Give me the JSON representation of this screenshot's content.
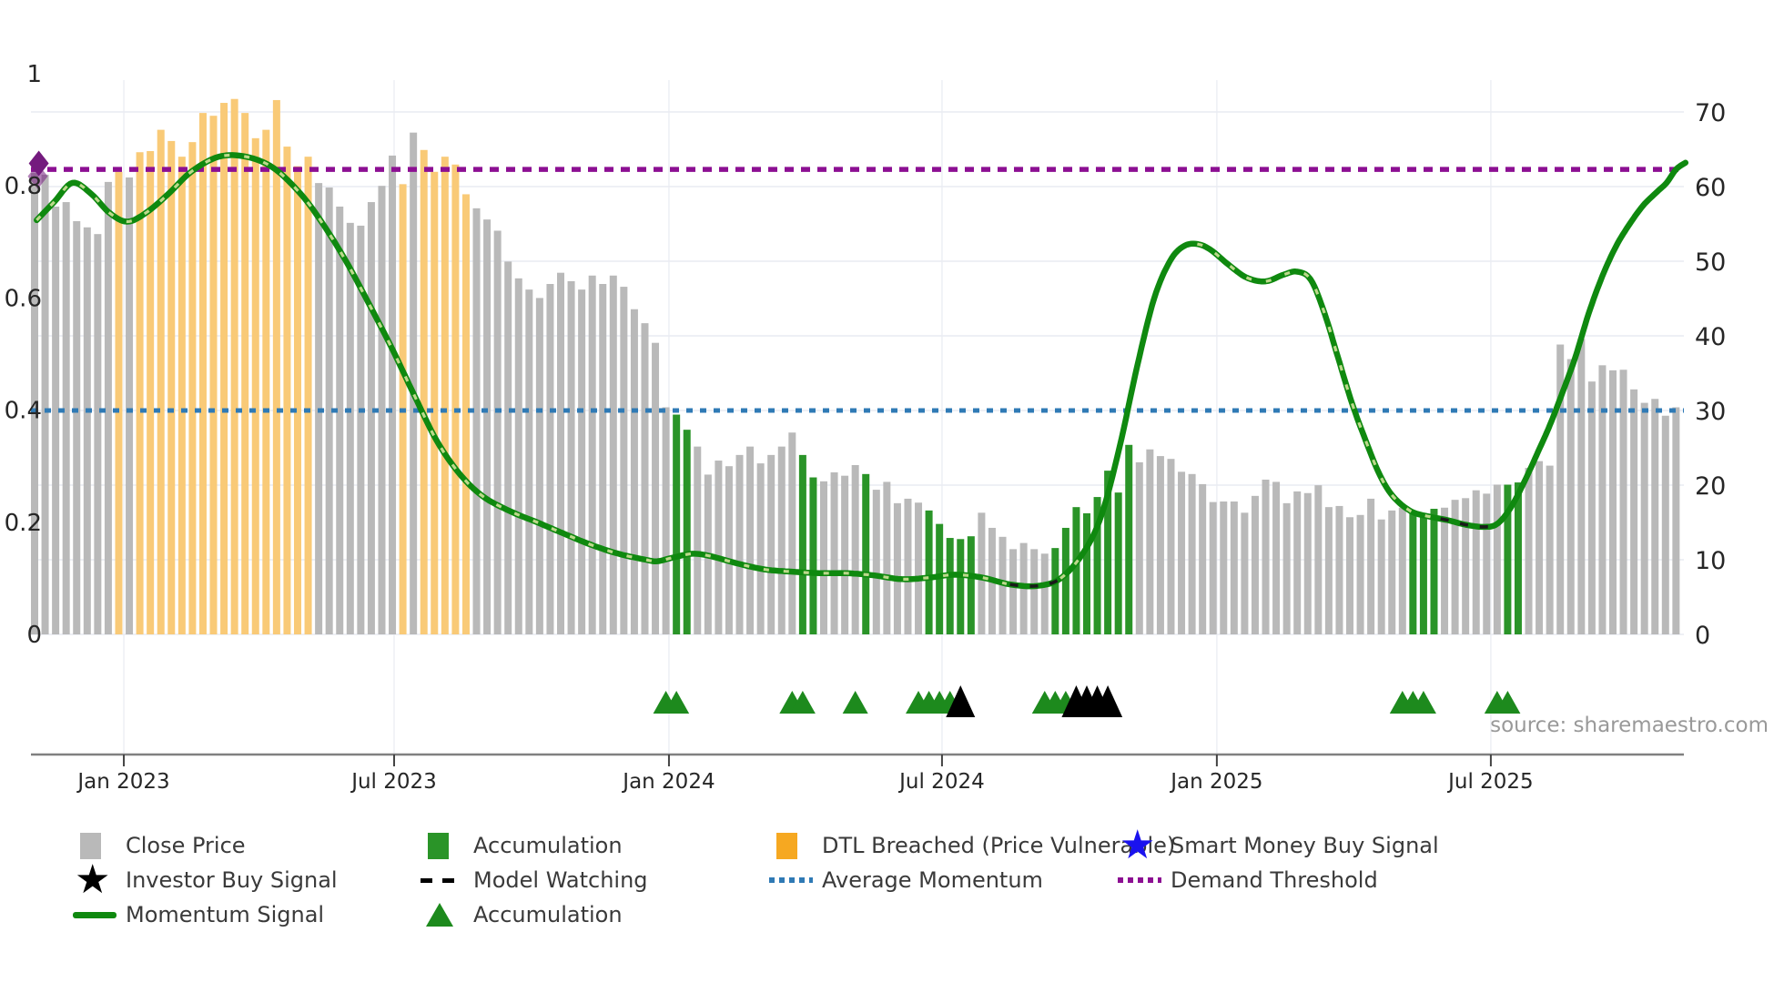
{
  "source": "source: sharemaestro.com",
  "colors": {
    "close_price_bar": "#b9b9b9",
    "dtl_breached_bar": "#f9ca77",
    "dtl_breached_legend": "#f6a821",
    "accumulation_bar": "#2a9428",
    "accumulation_triangle": "#1d8a1d",
    "investor_triangle": "#000000",
    "momentum_line": "#0f890f",
    "momentum_light_dash": "#bcd98b",
    "model_watch_dash": "#1a1a1a",
    "average_momentum": "#2f7ab5",
    "demand_threshold": "#8c0f92",
    "smart_money_star": "#1a12ee",
    "purple_diamond": "#741b7e",
    "grid": "#e9ebf2",
    "spine": "#808080",
    "tick_text": "#262626",
    "source_text": "#999999"
  },
  "axes": {
    "left": {
      "labels": [
        "1",
        "0.8",
        "0.6",
        "0.4",
        "0.2",
        "0"
      ],
      "values": [
        1,
        0.8,
        0.6,
        0.4,
        0.2,
        0
      ]
    },
    "right": {
      "labels": [
        "70",
        "60",
        "50",
        "40",
        "30",
        "20",
        "10",
        "0"
      ],
      "values": [
        70,
        60,
        50,
        40,
        30,
        20,
        10,
        0
      ]
    },
    "x": {
      "labels": [
        "Jan 2023",
        "Jul 2023",
        "Jan 2024",
        "Jul 2024",
        "Jan 2025",
        "Jul 2025"
      ],
      "bar_positions": [
        9.48,
        35.17,
        61.29,
        87.24,
        113.36,
        139.4
      ]
    }
  },
  "chart_data": {
    "type": "bar+line",
    "x_unit": "weekly bars, Nov 2022 - Oct 2025",
    "left_axis_range": [
      0,
      1
    ],
    "right_axis_range": [
      0,
      70
    ],
    "close_price_values": [
      0.823,
      0.82,
      0.763,
      0.771,
      0.737,
      0.726,
      0.714,
      0.807,
      0.825,
      0.815,
      0.86,
      0.862,
      0.9,
      0.88,
      0.852,
      0.878,
      0.93,
      0.925,
      0.948,
      0.955,
      0.93,
      0.885,
      0.9,
      0.953,
      0.87,
      0.835,
      0.852,
      0.805,
      0.797,
      0.763,
      0.734,
      0.729,
      0.771,
      0.8,
      0.854,
      0.803,
      0.895,
      0.864,
      0.825,
      0.852,
      0.838,
      0.785,
      0.76,
      0.74,
      0.72,
      0.665,
      0.635,
      0.615,
      0.6,
      0.625,
      0.645,
      0.63,
      0.615,
      0.64,
      0.625,
      0.64,
      0.62,
      0.58,
      0.555,
      0.52,
      0.405,
      0.392,
      0.365,
      0.335,
      0.285,
      0.31,
      0.3,
      0.32,
      0.335,
      0.305,
      0.32,
      0.335,
      0.36,
      0.32,
      0.28,
      0.273,
      0.289,
      0.283,
      0.302,
      0.286,
      0.258,
      0.272,
      0.234,
      0.242,
      0.235,
      0.221,
      0.197,
      0.172,
      0.17,
      0.175,
      0.217,
      0.19,
      0.174,
      0.152,
      0.163,
      0.152,
      0.144,
      0.154,
      0.19,
      0.227,
      0.216,
      0.245,
      0.292,
      0.253,
      0.338,
      0.307,
      0.33,
      0.318,
      0.313,
      0.29,
      0.286,
      0.268,
      0.236,
      0.237,
      0.237,
      0.217,
      0.247,
      0.276,
      0.272,
      0.234,
      0.255,
      0.252,
      0.266,
      0.227,
      0.229,
      0.209,
      0.213,
      0.242,
      0.205,
      0.221,
      0.226,
      0.219,
      0.209,
      0.224,
      0.226,
      0.24,
      0.243,
      0.257,
      0.251,
      0.267,
      0.267,
      0.271,
      0.297,
      0.309,
      0.301,
      0.517,
      0.491,
      0.527,
      0.451,
      0.48,
      0.471,
      0.472,
      0.437,
      0.413,
      0.42,
      0.39,
      0.405
    ],
    "bar_states": "ggggggggogoooooooooooooooooggggggggogooooogggggggggggggggggggaaggggggggggaaggggagggggaaaaagggggggaaaaaaaaggggggggggggggggggggggggggaaaggggggaagggggggggggggggg",
    "momentum_points": [
      [
        1.2,
        55.5
      ],
      [
        2.9,
        58
      ],
      [
        4.6,
        60.5
      ],
      [
        6.4,
        59
      ],
      [
        8.1,
        56.5
      ],
      [
        9.8,
        55.3
      ],
      [
        11.6,
        56.5
      ],
      [
        13.7,
        59
      ],
      [
        15.9,
        62
      ],
      [
        18.5,
        64
      ],
      [
        21.1,
        64
      ],
      [
        23.7,
        62.5
      ],
      [
        26.3,
        59
      ],
      [
        28.4,
        55
      ],
      [
        30.6,
        50
      ],
      [
        32.7,
        44.5
      ],
      [
        34.9,
        38.5
      ],
      [
        37.1,
        32
      ],
      [
        39.2,
        26
      ],
      [
        41.4,
        21.5
      ],
      [
        43.6,
        18.5
      ],
      [
        46.2,
        16.5
      ],
      [
        48.8,
        15
      ],
      [
        51.3,
        13.5
      ],
      [
        53.9,
        12
      ],
      [
        56.5,
        10.8
      ],
      [
        59.1,
        10
      ],
      [
        60.2,
        9.8
      ],
      [
        61.7,
        10.3
      ],
      [
        63.5,
        10.8
      ],
      [
        65.2,
        10.5
      ],
      [
        67.8,
        9.5
      ],
      [
        70.4,
        8.7
      ],
      [
        73,
        8.4
      ],
      [
        75.6,
        8.2
      ],
      [
        78.2,
        8.2
      ],
      [
        80.8,
        7.9
      ],
      [
        83.4,
        7.4
      ],
      [
        86,
        7.6
      ],
      [
        88.5,
        8
      ],
      [
        91.1,
        7.6
      ],
      [
        93.7,
        6.7
      ],
      [
        96.3,
        6.5
      ],
      [
        98.5,
        7.5
      ],
      [
        100.7,
        11
      ],
      [
        102.4,
        16
      ],
      [
        104.1,
        25
      ],
      [
        105.8,
        36
      ],
      [
        107.4,
        45
      ],
      [
        108.9,
        50
      ],
      [
        110.2,
        52
      ],
      [
        111.5,
        52.3
      ],
      [
        112.8,
        51.5
      ],
      [
        114.5,
        49.5
      ],
      [
        116.2,
        47.8
      ],
      [
        118,
        47.3
      ],
      [
        119.7,
        48.2
      ],
      [
        121,
        48.6
      ],
      [
        122.3,
        47.5
      ],
      [
        123.6,
        43
      ],
      [
        124.9,
        37
      ],
      [
        126.2,
        31
      ],
      [
        127.5,
        26
      ],
      [
        128.8,
        21.5
      ],
      [
        130.1,
        18.5
      ],
      [
        131.8,
        16.5
      ],
      [
        133.5,
        15.8
      ],
      [
        135.3,
        15.3
      ],
      [
        137,
        14.7
      ],
      [
        138.7,
        14.4
      ],
      [
        140,
        14.8
      ],
      [
        141.3,
        17
      ],
      [
        142.6,
        20.5
      ],
      [
        143.9,
        24.5
      ],
      [
        145,
        28
      ],
      [
        146.1,
        32
      ],
      [
        147.4,
        37
      ],
      [
        148.7,
        43
      ],
      [
        150,
        48
      ],
      [
        151.3,
        52
      ],
      [
        152.6,
        55
      ],
      [
        153.9,
        57.5
      ],
      [
        155.2,
        59.3
      ],
      [
        156.1,
        60.5
      ],
      [
        157,
        62.3
      ],
      [
        157.9,
        63.2
      ]
    ],
    "light_dash_ranges": [
      [
        1.2,
        93.5
      ],
      [
        98.5,
        100.7
      ],
      [
        111.5,
        134.5
      ]
    ],
    "model_watching_dash_ranges": [
      [
        93.5,
        98.5
      ],
      [
        134.5,
        139.5
      ]
    ],
    "average_momentum": 30,
    "demand_threshold": 62.3,
    "markers": {
      "accumulation_triangle_bars": [
        61,
        62,
        73,
        74,
        79,
        85,
        86,
        87,
        88,
        97,
        98,
        99,
        131,
        132,
        133,
        140,
        141
      ],
      "investor_buy_triangle_bars": [
        89,
        100,
        101,
        102,
        103
      ],
      "purple_diamonds": [
        {
          "bar": 1.4,
          "value": 0.84,
          "opacity": 1
        },
        {
          "bar": 1.3,
          "value": 0.817,
          "opacity": 0.55
        }
      ]
    }
  },
  "legend": {
    "columns": [
      {
        "items": [
          {
            "marker": "square",
            "color": "#b9b9b9",
            "label": "Close Price",
            "name": "close-price"
          },
          {
            "marker": "star",
            "color": "#000000",
            "label": "Investor Buy Signal",
            "name": "investor-buy-signal"
          },
          {
            "marker": "line",
            "color": "#0f890f",
            "label": "Momentum Signal",
            "name": "momentum-signal"
          }
        ]
      },
      {
        "items": [
          {
            "marker": "square",
            "color": "#2a9428",
            "label": "Accumulation",
            "name": "accumulation-bars"
          },
          {
            "marker": "dash",
            "color": "#000000",
            "label": "Model Watching",
            "name": "model-watching"
          },
          {
            "marker": "triangle",
            "color": "#1d8a1d",
            "label": "Accumulation",
            "name": "accumulation-markers"
          }
        ]
      },
      {
        "items": [
          {
            "marker": "square",
            "color": "#f6a821",
            "label": "DTL Breached (Price Vulnerable)",
            "name": "dtl-breached"
          },
          {
            "marker": "dots",
            "color": "#2f7ab5",
            "label": "Average Momentum",
            "name": "average-momentum"
          }
        ]
      },
      {
        "items": [
          {
            "marker": "star",
            "color": "#1a12ee",
            "label": "Smart Money Buy Signal",
            "name": "smart-money-buy-signal"
          },
          {
            "marker": "dots",
            "color": "#8c0f92",
            "label": "Demand Threshold",
            "name": "demand-threshold"
          }
        ]
      }
    ]
  }
}
